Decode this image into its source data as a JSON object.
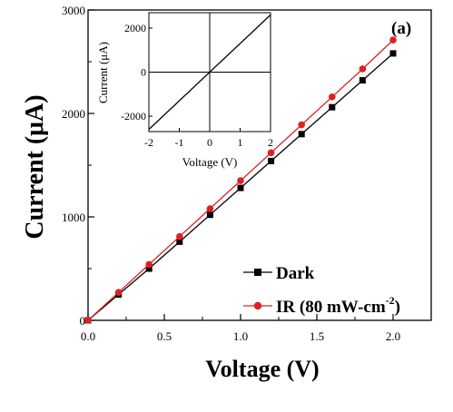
{
  "chart_data": [
    {
      "type": "line",
      "panel_label": "(a)",
      "xlabel": "Voltage (V)",
      "ylabel": "Current (μA)",
      "xlim": [
        0,
        2.25
      ],
      "ylim": [
        0,
        3000
      ],
      "xticks": [
        "0.0",
        "0.5",
        "1.0",
        "1.5",
        "2.0"
      ],
      "yticks": [
        "0",
        "1000",
        "2000",
        "3000"
      ],
      "legend_position": "bottom-right",
      "series": [
        {
          "name": "Dark",
          "color": "#000000",
          "marker": "square",
          "x": [
            0.0,
            0.2,
            0.4,
            0.6,
            0.8,
            1.0,
            1.2,
            1.4,
            1.6,
            1.8,
            2.0
          ],
          "y": [
            0,
            250,
            500,
            760,
            1020,
            1280,
            1540,
            1800,
            2060,
            2320,
            2580
          ]
        },
        {
          "name": "IR (80 mW-cm-2)",
          "name_main": "IR (80 mW-cm",
          "name_sup": "-2",
          "name_end": ")",
          "color": "#e02020",
          "marker": "circle",
          "x": [
            0.0,
            0.2,
            0.4,
            0.6,
            0.8,
            1.0,
            1.2,
            1.4,
            1.6,
            1.8,
            2.0
          ],
          "y": [
            0,
            270,
            540,
            810,
            1080,
            1350,
            1620,
            1890,
            2160,
            2430,
            2710
          ]
        }
      ]
    },
    {
      "type": "line",
      "role": "inset",
      "xlabel": "Voltage (V)",
      "ylabel": "Current (μA)",
      "xlim": [
        -2,
        2
      ],
      "ylim": [
        -2700,
        2700
      ],
      "xticks": [
        "-2",
        "-1",
        "0",
        "1",
        "2"
      ],
      "yticks": [
        "-2000",
        "0",
        "2000"
      ],
      "series": [
        {
          "x": [
            -2,
            2
          ],
          "y": [
            -2600,
            2600
          ],
          "color": "#000000"
        }
      ]
    }
  ]
}
